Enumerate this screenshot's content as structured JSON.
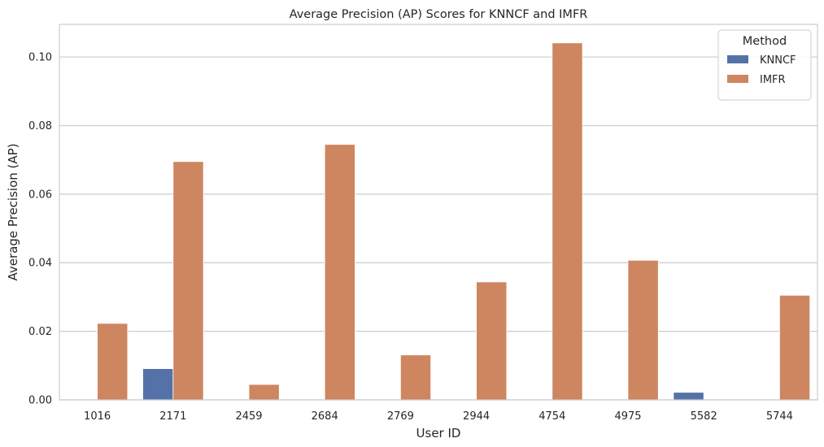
{
  "chart_data": {
    "type": "bar",
    "title": "Average Precision (AP) Scores for KNNCF and IMFR",
    "xlabel": "User ID",
    "ylabel": "Average Precision (AP)",
    "categories": [
      "1016",
      "2171",
      "2459",
      "2684",
      "2769",
      "2944",
      "4754",
      "4975",
      "5582",
      "5744"
    ],
    "series": [
      {
        "name": "KNNCF",
        "color": "#5572a8",
        "values": [
          0,
          0.0091,
          0,
          0,
          0,
          0,
          0,
          0,
          0.0022,
          0
        ]
      },
      {
        "name": "IMFR",
        "color": "#cd8660",
        "values": [
          0.0223,
          0.0695,
          0.0045,
          0.0745,
          0.0131,
          0.0344,
          0.1041,
          0.0407,
          0,
          0.0305
        ]
      }
    ],
    "ylim": [
      0,
      0.1095
    ],
    "yticks": [
      "0.00",
      "0.02",
      "0.04",
      "0.06",
      "0.08",
      "0.10"
    ],
    "ytick_values": [
      0,
      0.02,
      0.04,
      0.06,
      0.08,
      0.1
    ],
    "grid": "horizontal",
    "legend": {
      "title": "Method",
      "placement": "top-right"
    }
  }
}
